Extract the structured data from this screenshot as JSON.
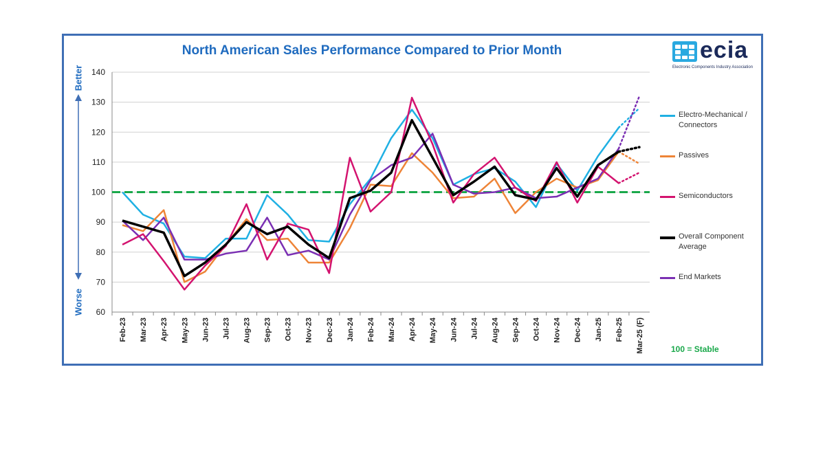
{
  "title": "North American Sales Performance Compared to Prior Month",
  "logo": {
    "text": "ecia",
    "subtitle": "Electronic Components Industry Association"
  },
  "axis_side_labels": {
    "top": "Better",
    "bottom": "Worse"
  },
  "stable_note": "100 = Stable",
  "colors": {
    "electro_mechanical": "#1fb0e3",
    "passives": "#ee8437",
    "semiconductors": "#d3136f",
    "overall": "#000000",
    "end_markets": "#7a2fb3",
    "stable": "#19a84a",
    "frame": "#3f6fb5"
  },
  "chart_data": {
    "type": "line",
    "title": "North American Sales Performance Compared to Prior Month",
    "categories": [
      "Feb-23",
      "Mar-23",
      "Apr-23",
      "May-23",
      "Jun-23",
      "Jul-23",
      "Aug-23",
      "Sep-23",
      "Oct-23",
      "Nov-23",
      "Dec-23",
      "Jan-24",
      "Feb-24",
      "Mar-24",
      "Apr-24",
      "May-24",
      "Jun-24",
      "Jul-24",
      "Aug-24",
      "Sep-24",
      "Oct-24",
      "Nov-24",
      "Dec-24",
      "Jan-25",
      "Feb-25",
      "Mar-25 (F)"
    ],
    "ylim": [
      60,
      140
    ],
    "yticks": [
      60,
      70,
      80,
      90,
      100,
      110,
      120,
      130,
      140
    ],
    "reference_line": {
      "value": 100,
      "style": "dashed"
    },
    "grid": "horizontal",
    "legend_position": "right",
    "series": [
      {
        "name": "Electro-Mechanical / Connectors",
        "color": "#1fb0e3",
        "width": 2.5,
        "values": [
          100,
          92.5,
          89.5,
          78.5,
          78,
          84.5,
          84.5,
          99,
          92.5,
          84,
          83.5,
          96,
          104.5,
          118,
          127.5,
          118,
          102.5,
          106,
          108,
          103.5,
          95,
          109.5,
          100.5,
          112,
          121.5,
          128
        ]
      },
      {
        "name": "Passives",
        "color": "#ee8437",
        "width": 2.5,
        "values": [
          89,
          87,
          94,
          70,
          73.5,
          82.5,
          91,
          84,
          84.5,
          76.5,
          76.5,
          88,
          102.5,
          102,
          113,
          106.5,
          98,
          98.5,
          104.5,
          93,
          100,
          104.5,
          101.5,
          104,
          113.5,
          109.5
        ]
      },
      {
        "name": "Semiconductors",
        "color": "#d3136f",
        "width": 2.5,
        "values": [
          82.5,
          86,
          77,
          67.5,
          75.5,
          82,
          96,
          77.5,
          89.5,
          87.5,
          73,
          111.5,
          93.5,
          100,
          131.5,
          116,
          96.5,
          106,
          111.5,
          101.5,
          97,
          110,
          96.5,
          108.5,
          103,
          106.5
        ]
      },
      {
        "name": "Overall Component Average",
        "color": "#000000",
        "width": 3.5,
        "values": [
          90.5,
          88.5,
          86.5,
          72,
          76.5,
          82.5,
          90,
          86,
          88.5,
          82.5,
          78,
          98,
          100.5,
          106.5,
          124,
          111.5,
          99,
          103.5,
          108.5,
          99,
          97.5,
          108,
          98.5,
          109,
          113.5,
          115
        ]
      },
      {
        "name": "End Markets",
        "color": "#7a2fb3",
        "width": 2.5,
        "values": [
          90.5,
          84,
          91.5,
          77.5,
          77.5,
          79.5,
          80.5,
          91.5,
          79,
          80.5,
          77.5,
          92.5,
          104,
          109,
          111.5,
          119.5,
          102.5,
          99.5,
          100,
          101.5,
          98,
          98.5,
          101.5,
          104.5,
          114.5,
          132
        ]
      }
    ]
  }
}
